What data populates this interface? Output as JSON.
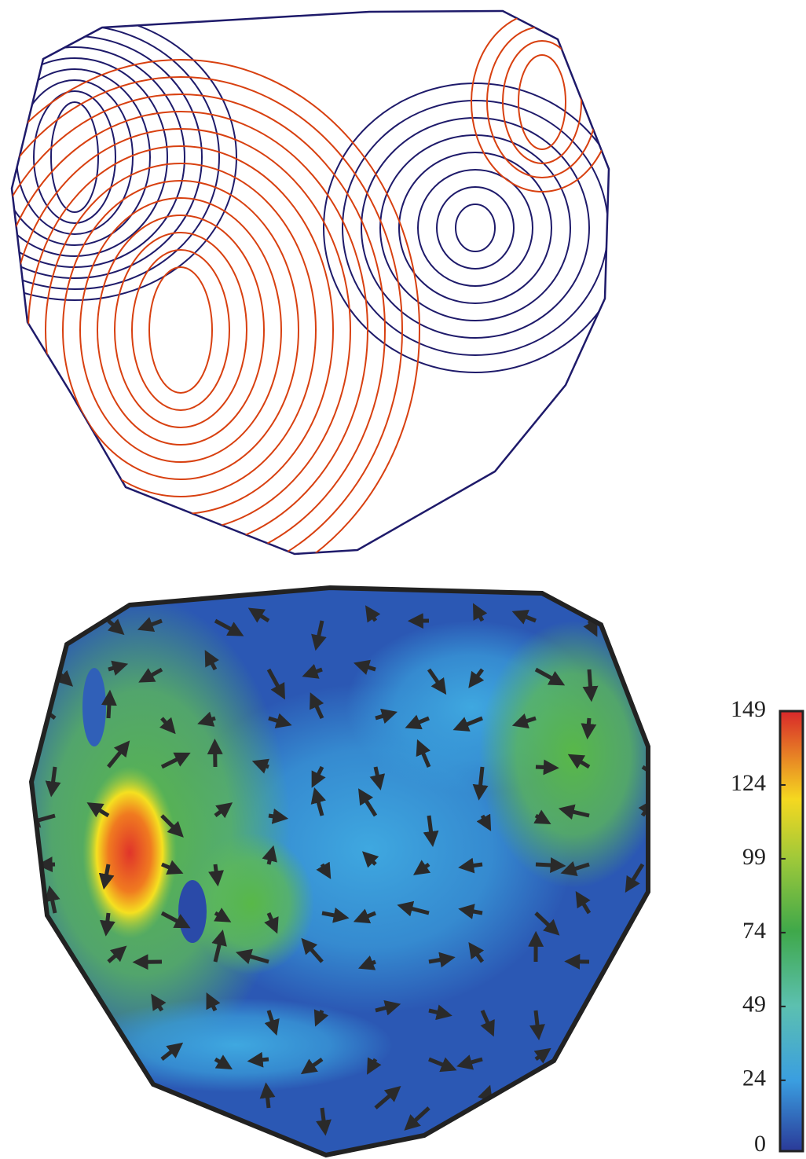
{
  "colorbar": {
    "lim": [
      0,
      149
    ],
    "ticks": [
      0,
      24,
      49,
      74,
      99,
      124,
      149
    ]
  }
}
